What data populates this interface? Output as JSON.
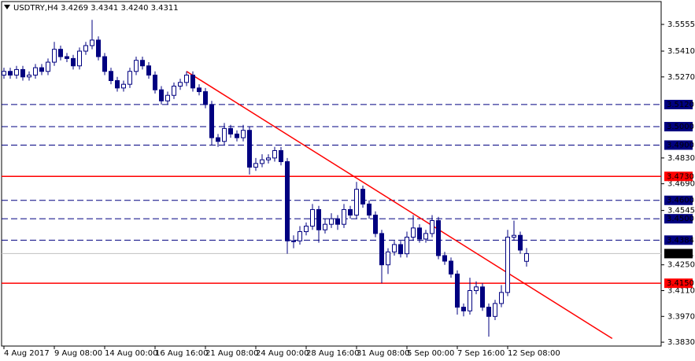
{
  "chart_data": {
    "type": "candlestick",
    "title": "USDTRY,H4  3.4269 3.4341 3.4240 3.4311",
    "color": "#000080",
    "ohlc": [
      [
        3.528,
        3.532,
        3.526,
        3.53
      ],
      [
        3.53,
        3.532,
        3.526,
        3.528
      ],
      [
        3.528,
        3.533,
        3.526,
        3.531
      ],
      [
        3.531,
        3.533,
        3.525,
        3.527
      ],
      [
        3.527,
        3.53,
        3.525,
        3.528
      ],
      [
        3.528,
        3.534,
        3.526,
        3.532
      ],
      [
        3.532,
        3.534,
        3.528,
        3.53
      ],
      [
        3.53,
        3.537,
        3.528,
        3.535
      ],
      [
        3.535,
        3.546,
        3.533,
        3.542
      ],
      [
        3.542,
        3.544,
        3.536,
        3.538
      ],
      [
        3.538,
        3.54,
        3.535,
        3.537
      ],
      [
        3.537,
        3.539,
        3.531,
        3.533
      ],
      [
        3.533,
        3.543,
        3.531,
        3.541
      ],
      [
        3.541,
        3.546,
        3.539,
        3.544
      ],
      [
        3.544,
        3.558,
        3.542,
        3.547
      ],
      [
        3.547,
        3.549,
        3.536,
        3.538
      ],
      [
        3.538,
        3.54,
        3.528,
        3.53
      ],
      [
        3.53,
        3.532,
        3.523,
        3.525
      ],
      [
        3.525,
        3.527,
        3.519,
        3.521
      ],
      [
        3.521,
        3.525,
        3.519,
        3.523
      ],
      [
        3.523,
        3.532,
        3.521,
        3.53
      ],
      [
        3.53,
        3.538,
        3.528,
        3.536
      ],
      [
        3.536,
        3.538,
        3.531,
        3.533
      ],
      [
        3.533,
        3.535,
        3.526,
        3.528
      ],
      [
        3.528,
        3.53,
        3.518,
        3.52
      ],
      [
        3.52,
        3.522,
        3.512,
        3.514
      ],
      [
        3.514,
        3.519,
        3.512,
        3.517
      ],
      [
        3.517,
        3.524,
        3.515,
        3.522
      ],
      [
        3.522,
        3.526,
        3.52,
        3.524
      ],
      [
        3.524,
        3.53,
        3.522,
        3.528
      ],
      [
        3.528,
        3.53,
        3.519,
        3.521
      ],
      [
        3.521,
        3.523,
        3.517,
        3.519
      ],
      [
        3.519,
        3.521,
        3.51,
        3.512
      ],
      [
        3.512,
        3.514,
        3.49,
        3.494
      ],
      [
        3.494,
        3.496,
        3.489,
        3.492
      ],
      [
        3.492,
        3.502,
        3.49,
        3.499
      ],
      [
        3.499,
        3.501,
        3.494,
        3.496
      ],
      [
        3.496,
        3.498,
        3.492,
        3.494
      ],
      [
        3.494,
        3.501,
        3.492,
        3.498
      ],
      [
        3.498,
        3.5,
        3.474,
        3.478
      ],
      [
        3.478,
        3.483,
        3.476,
        3.48
      ],
      [
        3.48,
        3.485,
        3.478,
        3.482
      ],
      [
        3.482,
        3.485,
        3.48,
        3.483
      ],
      [
        3.483,
        3.489,
        3.481,
        3.487
      ],
      [
        3.487,
        3.489,
        3.479,
        3.481
      ],
      [
        3.481,
        3.483,
        3.431,
        3.438
      ],
      [
        3.438,
        3.441,
        3.434,
        3.438
      ],
      [
        3.438,
        3.446,
        3.436,
        3.443
      ],
      [
        3.443,
        3.448,
        3.441,
        3.446
      ],
      [
        3.446,
        3.458,
        3.444,
        3.455
      ],
      [
        3.455,
        3.457,
        3.437,
        3.444
      ],
      [
        3.444,
        3.45,
        3.442,
        3.447
      ],
      [
        3.447,
        3.453,
        3.445,
        3.45
      ],
      [
        3.45,
        3.452,
        3.444,
        3.447
      ],
      [
        3.447,
        3.458,
        3.445,
        3.455
      ],
      [
        3.455,
        3.457,
        3.45,
        3.452
      ],
      [
        3.452,
        3.47,
        3.45,
        3.466
      ],
      [
        3.466,
        3.468,
        3.456,
        3.458
      ],
      [
        3.458,
        3.46,
        3.45,
        3.452
      ],
      [
        3.452,
        3.454,
        3.44,
        3.442
      ],
      [
        3.442,
        3.444,
        3.415,
        3.425
      ],
      [
        3.425,
        3.434,
        3.42,
        3.432
      ],
      [
        3.432,
        3.438,
        3.43,
        3.436
      ],
      [
        3.436,
        3.438,
        3.429,
        3.431
      ],
      [
        3.431,
        3.443,
        3.429,
        3.44
      ],
      [
        3.44,
        3.452,
        3.438,
        3.445
      ],
      [
        3.445,
        3.447,
        3.437,
        3.439
      ],
      [
        3.439,
        3.444,
        3.437,
        3.442
      ],
      [
        3.442,
        3.452,
        3.44,
        3.449
      ],
      [
        3.449,
        3.451,
        3.428,
        3.43
      ],
      [
        3.43,
        3.432,
        3.425,
        3.427
      ],
      [
        3.427,
        3.429,
        3.418,
        3.42
      ],
      [
        3.42,
        3.422,
        3.398,
        3.402
      ],
      [
        3.402,
        3.404,
        3.397,
        3.4
      ],
      [
        3.4,
        3.418,
        3.398,
        3.411
      ],
      [
        3.411,
        3.416,
        3.409,
        3.413
      ],
      [
        3.413,
        3.415,
        3.4,
        3.402
      ],
      [
        3.402,
        3.404,
        3.386,
        3.397
      ],
      [
        3.397,
        3.406,
        3.395,
        3.404
      ],
      [
        3.404,
        3.414,
        3.402,
        3.41
      ],
      [
        3.41,
        3.444,
        3.408,
        3.44
      ],
      [
        3.44,
        3.449,
        3.438,
        3.441
      ],
      [
        3.441,
        3.443,
        3.431,
        3.433
      ],
      [
        3.4269,
        3.4341,
        3.424,
        3.4311
      ]
    ],
    "xlim": [
      -0.375,
      104.375
    ],
    "xticks": [
      {
        "value": 0,
        "label": "4 Aug 2017"
      },
      {
        "value": 8,
        "label": "9 Aug 08:00"
      },
      {
        "value": 16,
        "label": "14 Aug 00:00"
      },
      {
        "value": 24,
        "label": "16 Aug 16:00"
      },
      {
        "value": 32,
        "label": "21 Aug 08:00"
      },
      {
        "value": 40,
        "label": "24 Aug 00:00"
      },
      {
        "value": 48,
        "label": "28 Aug 16:00"
      },
      {
        "value": 56,
        "label": "31 Aug 08:00"
      },
      {
        "value": 64,
        "label": "5 Sep 00:00"
      },
      {
        "value": 72,
        "label": "7 Sep 16:00"
      },
      {
        "value": 80,
        "label": "12 Sep 08:00"
      }
    ],
    "ylim": [
      3.3809,
      3.5679
    ],
    "yticks": [
      {
        "value": 3.5555,
        "label": "3.5555"
      },
      {
        "value": 3.541,
        "label": "3.5410"
      },
      {
        "value": 3.527,
        "label": "3.5270"
      },
      {
        "value": 3.483,
        "label": "3.4830"
      },
      {
        "value": 3.469,
        "label": "3.4690"
      },
      {
        "value": 3.4545,
        "label": "3.4545"
      },
      {
        "value": 3.425,
        "label": "3.4250"
      },
      {
        "value": 3.411,
        "label": "3.4110"
      },
      {
        "value": 3.397,
        "label": "3.3970"
      },
      {
        "value": 3.383,
        "label": "3.3830"
      }
    ],
    "levels": [
      {
        "value": 3.512,
        "label": "3.5120",
        "color": "#000080",
        "style": "dashed"
      },
      {
        "value": 3.5,
        "label": "3.5000",
        "color": "#000080",
        "style": "dashed"
      },
      {
        "value": 3.49,
        "label": "3.4900",
        "color": "#000080",
        "style": "dashed"
      },
      {
        "value": 3.473,
        "label": "3.4730",
        "color": "#ff0000",
        "style": "solid"
      },
      {
        "value": 3.46,
        "label": "3.4600",
        "color": "#000080",
        "style": "dashed"
      },
      {
        "value": 3.45,
        "label": "3.4500",
        "color": "#000080",
        "style": "dashed"
      },
      {
        "value": 3.4384,
        "label": "3.4384",
        "color": "#000080",
        "style": "dashed"
      },
      {
        "value": 3.415,
        "label": "3.4150",
        "color": "#ff0000",
        "style": "solid"
      }
    ],
    "current": {
      "value": 3.4311,
      "label": "3.4311",
      "color": "#c0c0c0"
    },
    "trendline": {
      "from": [
        29,
        3.53
      ],
      "to": [
        96.6,
        3.385
      ],
      "color": "#ff0000"
    }
  }
}
